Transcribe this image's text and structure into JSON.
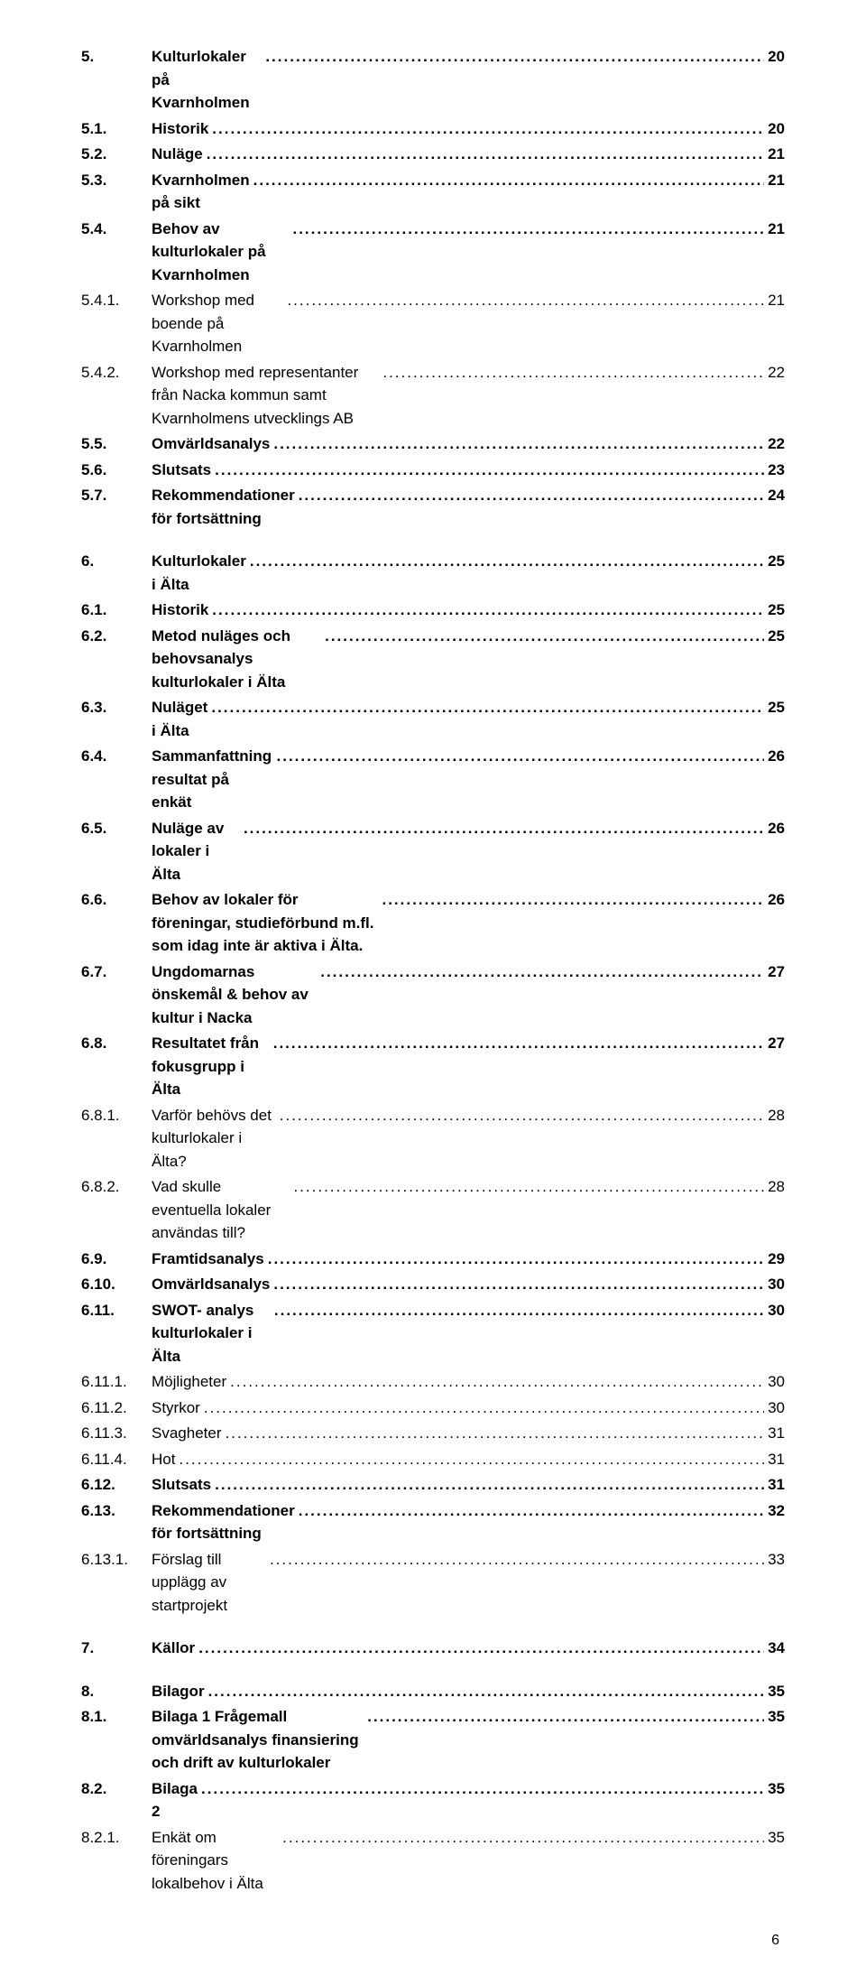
{
  "footer_page": "6",
  "toc": [
    {
      "num": "5.",
      "title": "Kulturlokaler på Kvarnholmen",
      "page": "20",
      "bold": true,
      "level": 1,
      "section": false
    },
    {
      "num": "5.1.",
      "title": "Historik",
      "page": "20",
      "bold": true,
      "level": 2,
      "section": false
    },
    {
      "num": "5.2.",
      "title": "Nuläge",
      "page": "21",
      "bold": true,
      "level": 2,
      "section": false
    },
    {
      "num": "5.3.",
      "title": "Kvarnholmen på sikt",
      "page": "21",
      "bold": true,
      "level": 2,
      "section": false
    },
    {
      "num": "5.4.",
      "title": "Behov av kulturlokaler på Kvarnholmen",
      "page": "21",
      "bold": true,
      "level": 2,
      "section": false
    },
    {
      "num": "5.4.1.",
      "title": "Workshop med boende på Kvarnholmen",
      "page": "21",
      "bold": false,
      "level": 3,
      "section": false
    },
    {
      "num": "5.4.2.",
      "title": "Workshop med representanter från Nacka kommun samt Kvarnholmens utvecklings AB",
      "page": "22",
      "bold": false,
      "level": 3,
      "section": false
    },
    {
      "num": "5.5.",
      "title": "Omvärldsanalys",
      "page": "22",
      "bold": true,
      "level": 2,
      "section": false
    },
    {
      "num": "5.6.",
      "title": "Slutsats",
      "page": "23",
      "bold": true,
      "level": 2,
      "section": false
    },
    {
      "num": "5.7.",
      "title": "Rekommendationer för fortsättning",
      "page": "24",
      "bold": true,
      "level": 2,
      "section": false
    },
    {
      "num": "6.",
      "title": "Kulturlokaler i Älta",
      "page": "25",
      "bold": true,
      "level": 1,
      "section": true
    },
    {
      "num": "6.1.",
      "title": "Historik",
      "page": "25",
      "bold": true,
      "level": 2,
      "section": false
    },
    {
      "num": "6.2.",
      "title": "Metod nuläges och behovsanalys kulturlokaler i Älta",
      "page": "25",
      "bold": true,
      "level": 2,
      "section": false
    },
    {
      "num": "6.3.",
      "title": "Nuläget i Älta",
      "page": "25",
      "bold": true,
      "level": 2,
      "section": false
    },
    {
      "num": "6.4.",
      "title": "Sammanfattning resultat på enkät",
      "page": "26",
      "bold": true,
      "level": 2,
      "section": false
    },
    {
      "num": "6.5.",
      "title": "Nuläge av lokaler i Älta",
      "page": "26",
      "bold": true,
      "level": 2,
      "section": false
    },
    {
      "num": "6.6.",
      "title": "Behov av lokaler för föreningar, studieförbund m.fl. som idag inte är aktiva i Älta.",
      "page": "26",
      "bold": true,
      "level": 2,
      "section": false
    },
    {
      "num": "6.7.",
      "title": "Ungdomarnas önskemål & behov av kultur i Nacka",
      "page": "27",
      "bold": true,
      "level": 2,
      "section": false
    },
    {
      "num": "6.8.",
      "title": "Resultatet från fokusgrupp i Älta",
      "page": "27",
      "bold": true,
      "level": 2,
      "section": false
    },
    {
      "num": "6.8.1.",
      "title": "Varför behövs det kulturlokaler i Älta?",
      "page": "28",
      "bold": false,
      "level": 3,
      "section": false
    },
    {
      "num": "6.8.2.",
      "title": "Vad skulle eventuella lokaler användas till?",
      "page": "28",
      "bold": false,
      "level": 3,
      "section": false
    },
    {
      "num": "6.9.",
      "title": "Framtidsanalys",
      "page": "29",
      "bold": true,
      "level": 2,
      "section": false
    },
    {
      "num": "6.10.",
      "title": "Omvärldsanalys",
      "page": "30",
      "bold": true,
      "level": 2,
      "section": false
    },
    {
      "num": "6.11.",
      "title": "SWOT- analys kulturlokaler i Älta",
      "page": "30",
      "bold": true,
      "level": 2,
      "section": false
    },
    {
      "num": "6.11.1.",
      "title": "Möjligheter",
      "page": "30",
      "bold": false,
      "level": 3,
      "section": false
    },
    {
      "num": "6.11.2.",
      "title": "Styrkor",
      "page": "30",
      "bold": false,
      "level": 3,
      "section": false
    },
    {
      "num": "6.11.3.",
      "title": "Svagheter",
      "page": "31",
      "bold": false,
      "level": 3,
      "section": false
    },
    {
      "num": "6.11.4.",
      "title": "Hot",
      "page": "31",
      "bold": false,
      "level": 3,
      "section": false
    },
    {
      "num": "6.12.",
      "title": "Slutsats",
      "page": "31",
      "bold": true,
      "level": 2,
      "section": false
    },
    {
      "num": "6.13.",
      "title": "Rekommendationer för fortsättning",
      "page": "32",
      "bold": true,
      "level": 2,
      "section": false
    },
    {
      "num": "6.13.1.",
      "title": "Förslag till upplägg av startprojekt",
      "page": "33",
      "bold": false,
      "level": 3,
      "section": false
    },
    {
      "num": "7.",
      "title": "Källor",
      "page": "34",
      "bold": true,
      "level": 1,
      "section": true
    },
    {
      "num": "8.",
      "title": "Bilagor",
      "page": "35",
      "bold": true,
      "level": 1,
      "section": true
    },
    {
      "num": "8.1.",
      "title": "Bilaga 1 Frågemall omvärldsanalys finansiering och drift av kulturlokaler",
      "page": "35",
      "bold": true,
      "level": 2,
      "section": false
    },
    {
      "num": "8.2.",
      "title": "Bilaga 2",
      "page": "35",
      "bold": true,
      "level": 2,
      "section": false
    },
    {
      "num": "8.2.1.",
      "title": "Enkät om föreningars lokalbehov i Älta",
      "page": "35",
      "bold": false,
      "level": 3,
      "section": false
    }
  ]
}
